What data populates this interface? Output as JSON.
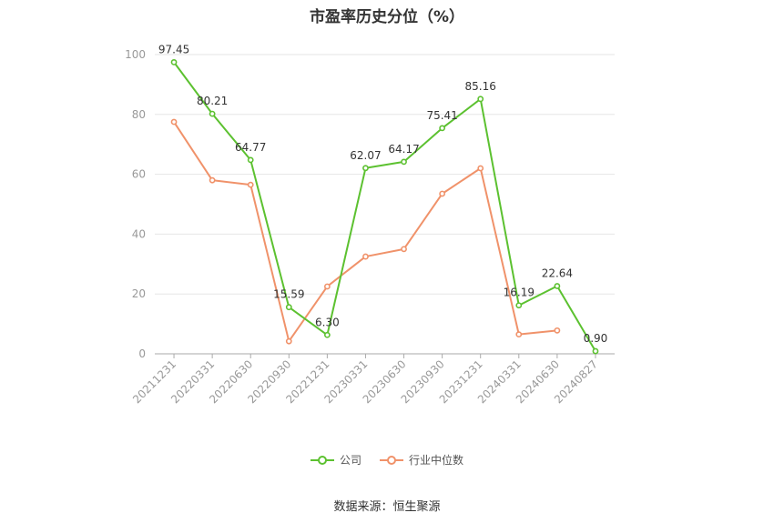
{
  "chart_data": {
    "type": "line",
    "title": "市盈率历史分位（%）",
    "categories": [
      "20211231",
      "20220331",
      "20220630",
      "20220930",
      "20221231",
      "20230331",
      "20230630",
      "20230930",
      "20231231",
      "20240331",
      "20240630",
      "20240827"
    ],
    "series": [
      {
        "name": "公司",
        "color": "#5cc130",
        "values": [
          97.45,
          80.21,
          64.77,
          15.59,
          6.3,
          62.07,
          64.17,
          75.41,
          85.16,
          16.19,
          22.64,
          0.9
        ],
        "labels": [
          "97.45",
          "80.21",
          "64.77",
          "15.59",
          "6.30",
          "62.07",
          "64.17",
          "75.41",
          "85.16",
          "16.19",
          "22.64",
          "0.90"
        ]
      },
      {
        "name": "行业中位数",
        "color": "#f0926a",
        "values": [
          77.5,
          58.0,
          56.5,
          4.2,
          22.5,
          32.5,
          35.0,
          53.5,
          62.0,
          6.5,
          7.8,
          null
        ]
      }
    ],
    "yticks": [
      "0",
      "20",
      "40",
      "60",
      "80",
      "100"
    ],
    "ylim": [
      0,
      100
    ],
    "grid": true,
    "legend_position": "bottom"
  },
  "source_text": "数据来源：恒生聚源"
}
